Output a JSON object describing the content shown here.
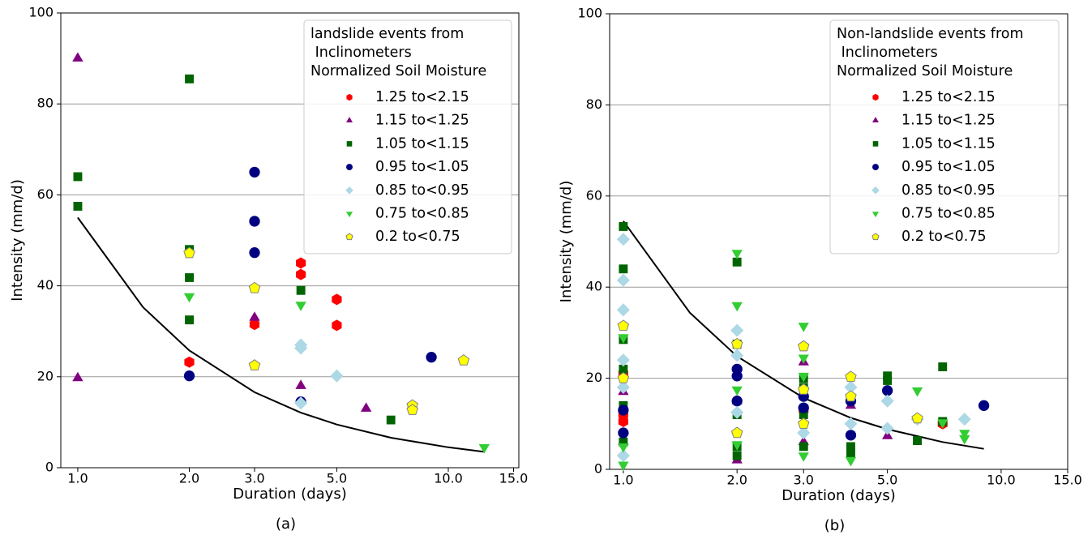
{
  "chart_data": [
    {
      "type": "scatter",
      "caption": "(a)",
      "xlabel": "Duration (days)",
      "ylabel": "Intensity (mm/d)",
      "xscale": "log",
      "xlim": [
        0.9,
        15.5
      ],
      "ylim": [
        0,
        100
      ],
      "xticks": [
        {
          "value": 1,
          "label": "1.0"
        },
        {
          "value": 2,
          "label": "2.0"
        },
        {
          "value": 3,
          "label": "3.0"
        },
        {
          "value": 5,
          "label": "5.0"
        },
        {
          "value": 10,
          "label": "10.0"
        },
        {
          "value": 15,
          "label": "15.0"
        }
      ],
      "yticks": [
        0,
        20,
        40,
        60,
        80,
        100
      ],
      "grid": true,
      "legend": "upper right",
      "legend_title": [
        "landslide events from",
        " Inclinometers",
        "Normalized Soil Moisture"
      ],
      "series": [
        {
          "name": "1.25 to<2.15",
          "color": "#ff0000",
          "marker": "hexagon",
          "x": [
            2,
            3,
            4,
            4,
            5,
            5
          ],
          "values": [
            23.2,
            31.5,
            45,
            42.5,
            37,
            31.3
          ]
        },
        {
          "name": "1.15 to<1.25",
          "color": "#800080",
          "marker": "triangle-up",
          "x": [
            1,
            1,
            3,
            4,
            6
          ],
          "values": [
            90,
            19.7,
            33,
            18,
            13
          ]
        },
        {
          "name": "1.05 to<1.15",
          "color": "#006400",
          "marker": "square",
          "x": [
            1,
            1,
            2,
            2,
            2,
            2,
            4,
            7
          ],
          "values": [
            64,
            57.5,
            85.5,
            48,
            41.8,
            32.5,
            39,
            10.5
          ]
        },
        {
          "name": "0.95 to<1.05",
          "color": "#000080",
          "marker": "circle",
          "x": [
            2,
            3,
            3,
            3,
            4,
            9
          ],
          "values": [
            20.2,
            65,
            54.2,
            47.3,
            14.5,
            24.3
          ]
        },
        {
          "name": "0.85 to<0.95",
          "color": "#add8e6",
          "marker": "diamond",
          "x": [
            4,
            4,
            4,
            5
          ],
          "values": [
            27,
            26.3,
            14.2,
            20.2
          ]
        },
        {
          "name": "0.75 to<0.85",
          "color": "#32cd32",
          "marker": "triangle-down",
          "x": [
            2,
            4,
            12.5
          ],
          "values": [
            37.7,
            35.8,
            4.5
          ]
        },
        {
          "name": "0.2 to<0.75",
          "color": "#ffff00",
          "edgecolor": "#808080",
          "marker": "pentagon",
          "x": [
            2,
            3,
            3,
            8,
            8,
            11
          ],
          "values": [
            47.2,
            39.5,
            22.5,
            13.7,
            12.7,
            23.6
          ]
        }
      ],
      "curve": {
        "color": "#000000",
        "x": [
          1,
          1.5,
          2,
          3,
          4,
          5,
          7,
          10,
          12.5
        ],
        "values": [
          55,
          35.3,
          25.8,
          16.6,
          12.1,
          9.5,
          6.6,
          4.5,
          3.5
        ]
      }
    },
    {
      "type": "scatter",
      "caption": "(b)",
      "xlabel": "Duration (days)",
      "ylabel": "Intensity (mm/d)",
      "xscale": "log",
      "xlim": [
        0.92,
        15
      ],
      "ylim": [
        0,
        100
      ],
      "xticks": [
        {
          "value": 1,
          "label": "1.0"
        },
        {
          "value": 2,
          "label": "2.0"
        },
        {
          "value": 3,
          "label": "3.0"
        },
        {
          "value": 5,
          "label": "5.0"
        },
        {
          "value": 10,
          "label": "10.0"
        },
        {
          "value": 15,
          "label": "15.0"
        }
      ],
      "yticks": [
        0,
        20,
        40,
        60,
        80,
        100
      ],
      "grid": true,
      "legend": "upper right",
      "legend_title": [
        "Non-landslide events from",
        " Inclinometers",
        "Normalized Soil Moisture"
      ],
      "series": [
        {
          "name": "1.25 to<2.15",
          "color": "#ff0000",
          "marker": "hexagon",
          "x": [
            1,
            1,
            1,
            3,
            7
          ],
          "values": [
            12,
            10.5,
            21,
            13,
            10
          ]
        },
        {
          "name": "1.15 to<1.25",
          "color": "#800080",
          "marker": "triangle-up",
          "x": [
            1,
            1,
            2,
            2,
            3,
            3,
            4,
            5
          ],
          "values": [
            17,
            6,
            2,
            15,
            23.5,
            6,
            14,
            7.3
          ]
        },
        {
          "name": "1.05 to<1.15",
          "color": "#006400",
          "marker": "square",
          "x": [
            1,
            1,
            1,
            1,
            1,
            1,
            2,
            2,
            2,
            2,
            2,
            3,
            3,
            3,
            3,
            4,
            4,
            5,
            5,
            6,
            7,
            7
          ],
          "values": [
            53.3,
            44,
            28.5,
            22,
            14,
            6,
            45.5,
            27.5,
            12,
            5,
            3,
            20,
            18,
            12,
            5,
            5,
            3.5,
            20.5,
            19.5,
            6.3,
            22.5,
            10.5
          ]
        },
        {
          "name": "0.95 to<1.05",
          "color": "#000080",
          "marker": "circle",
          "x": [
            1,
            1,
            2,
            2,
            2,
            3,
            3,
            4,
            4,
            5,
            9
          ],
          "values": [
            13,
            8,
            22,
            20.5,
            15,
            13.5,
            16,
            15,
            7.5,
            17.3,
            14
          ]
        },
        {
          "name": "0.85 to<0.95",
          "color": "#add8e6",
          "marker": "diamond",
          "x": [
            1,
            1,
            1,
            1,
            1,
            1,
            2,
            2,
            2,
            3,
            4,
            4,
            5,
            5,
            6,
            8
          ],
          "values": [
            50.5,
            41.5,
            35,
            24,
            18,
            3,
            30.5,
            25,
            12.5,
            8,
            18,
            10,
            15,
            9,
            11,
            11
          ]
        },
        {
          "name": "0.75 to<0.85",
          "color": "#32cd32",
          "marker": "triangle-down",
          "x": [
            1,
            1,
            1,
            2,
            2,
            2,
            2,
            3,
            3,
            3,
            3,
            4,
            6,
            7,
            8,
            8
          ],
          "values": [
            29,
            5,
            1,
            47.5,
            36,
            17.5,
            5.5,
            31.5,
            24.5,
            20.5,
            3,
            2,
            17.3,
            10.3,
            8,
            6.8
          ]
        },
        {
          "name": "0.2 to<0.75",
          "color": "#ffff00",
          "edgecolor": "#808080",
          "marker": "pentagon",
          "x": [
            1,
            1,
            2,
            2,
            3,
            3,
            3,
            4,
            4,
            6
          ],
          "values": [
            31.5,
            20,
            27.5,
            8,
            27,
            17.5,
            10,
            20.3,
            16,
            11.2
          ]
        }
      ],
      "curve": {
        "color": "#000000",
        "x": [
          1,
          1.5,
          2,
          3,
          4,
          5,
          7,
          9
        ],
        "values": [
          54.5,
          34.4,
          24.8,
          15.7,
          11.3,
          8.8,
          6.0,
          4.5
        ]
      }
    }
  ]
}
